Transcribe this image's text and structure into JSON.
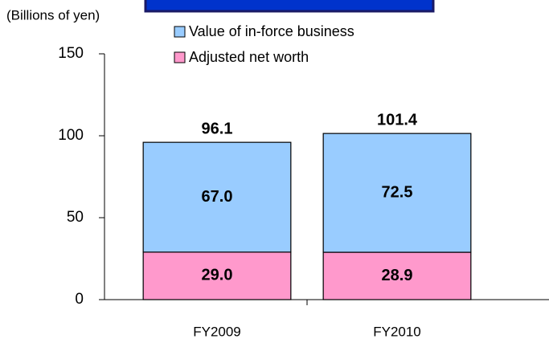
{
  "chart_data": {
    "type": "stacked_bar",
    "y_axis_label": "(Billions of yen)",
    "categories": [
      "FY2009",
      "FY2010"
    ],
    "series": [
      {
        "name": "Adjusted net worth",
        "color": "#ff99cc",
        "values": [
          29.0,
          28.9
        ],
        "value_labels": [
          "29.0",
          "28.9"
        ]
      },
      {
        "name": "Value of in-force business",
        "color": "#99ccff",
        "values": [
          67.0,
          72.5
        ],
        "value_labels": [
          "67.0",
          "72.5"
        ]
      }
    ],
    "totals": [
      96.1,
      101.4
    ],
    "ylim": [
      0,
      150
    ],
    "yticks": [
      0,
      50,
      100,
      150
    ],
    "grid": false
  }
}
